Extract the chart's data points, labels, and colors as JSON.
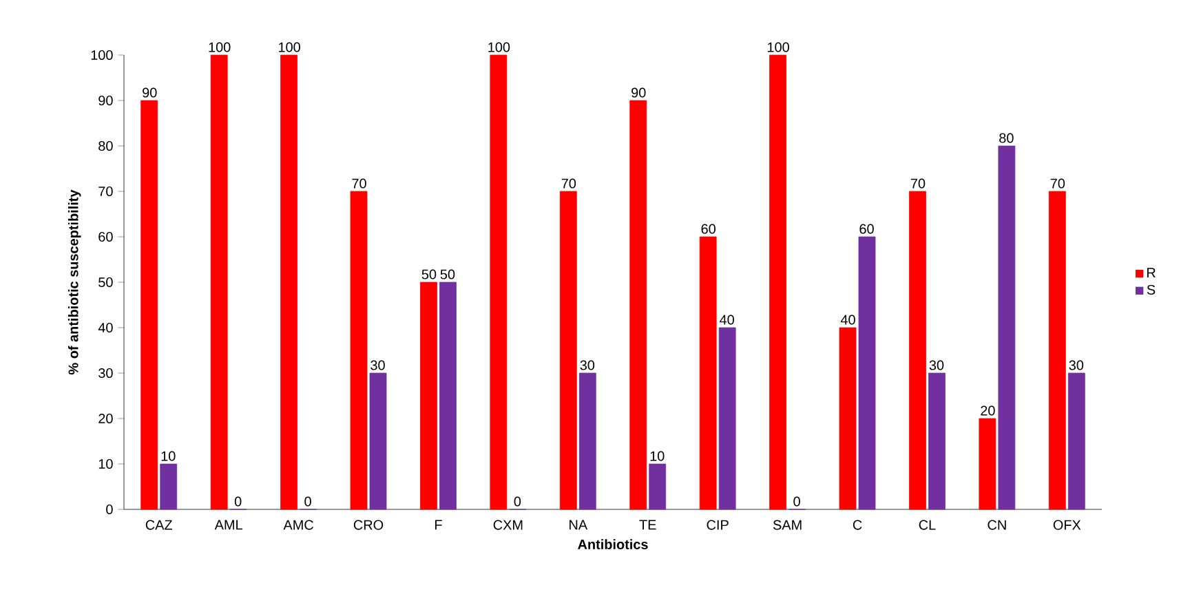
{
  "chart_data": {
    "type": "bar",
    "xlabel": "Antibiotics",
    "ylabel": "% of antibiotic susceptibility",
    "categories": [
      "CAZ",
      "AML",
      "AMC",
      "CRO",
      "F",
      "CXM",
      "NA",
      "TE",
      "CIP",
      "SAM",
      "C",
      "CL",
      "CN",
      "OFX"
    ],
    "series": [
      {
        "name": "R",
        "color": "#ff0000",
        "values": [
          90,
          100,
          100,
          70,
          50,
          100,
          70,
          90,
          60,
          100,
          40,
          70,
          20,
          70
        ]
      },
      {
        "name": "S",
        "color": "#7030a0",
        "values": [
          10,
          0,
          0,
          30,
          50,
          0,
          30,
          10,
          40,
          0,
          60,
          30,
          80,
          30
        ]
      }
    ],
    "ylim": [
      0,
      100
    ],
    "yticks": [
      0,
      10,
      20,
      30,
      40,
      50,
      60,
      70,
      80,
      90,
      100
    ],
    "grid": false,
    "legend": "right",
    "data_labels": true
  }
}
